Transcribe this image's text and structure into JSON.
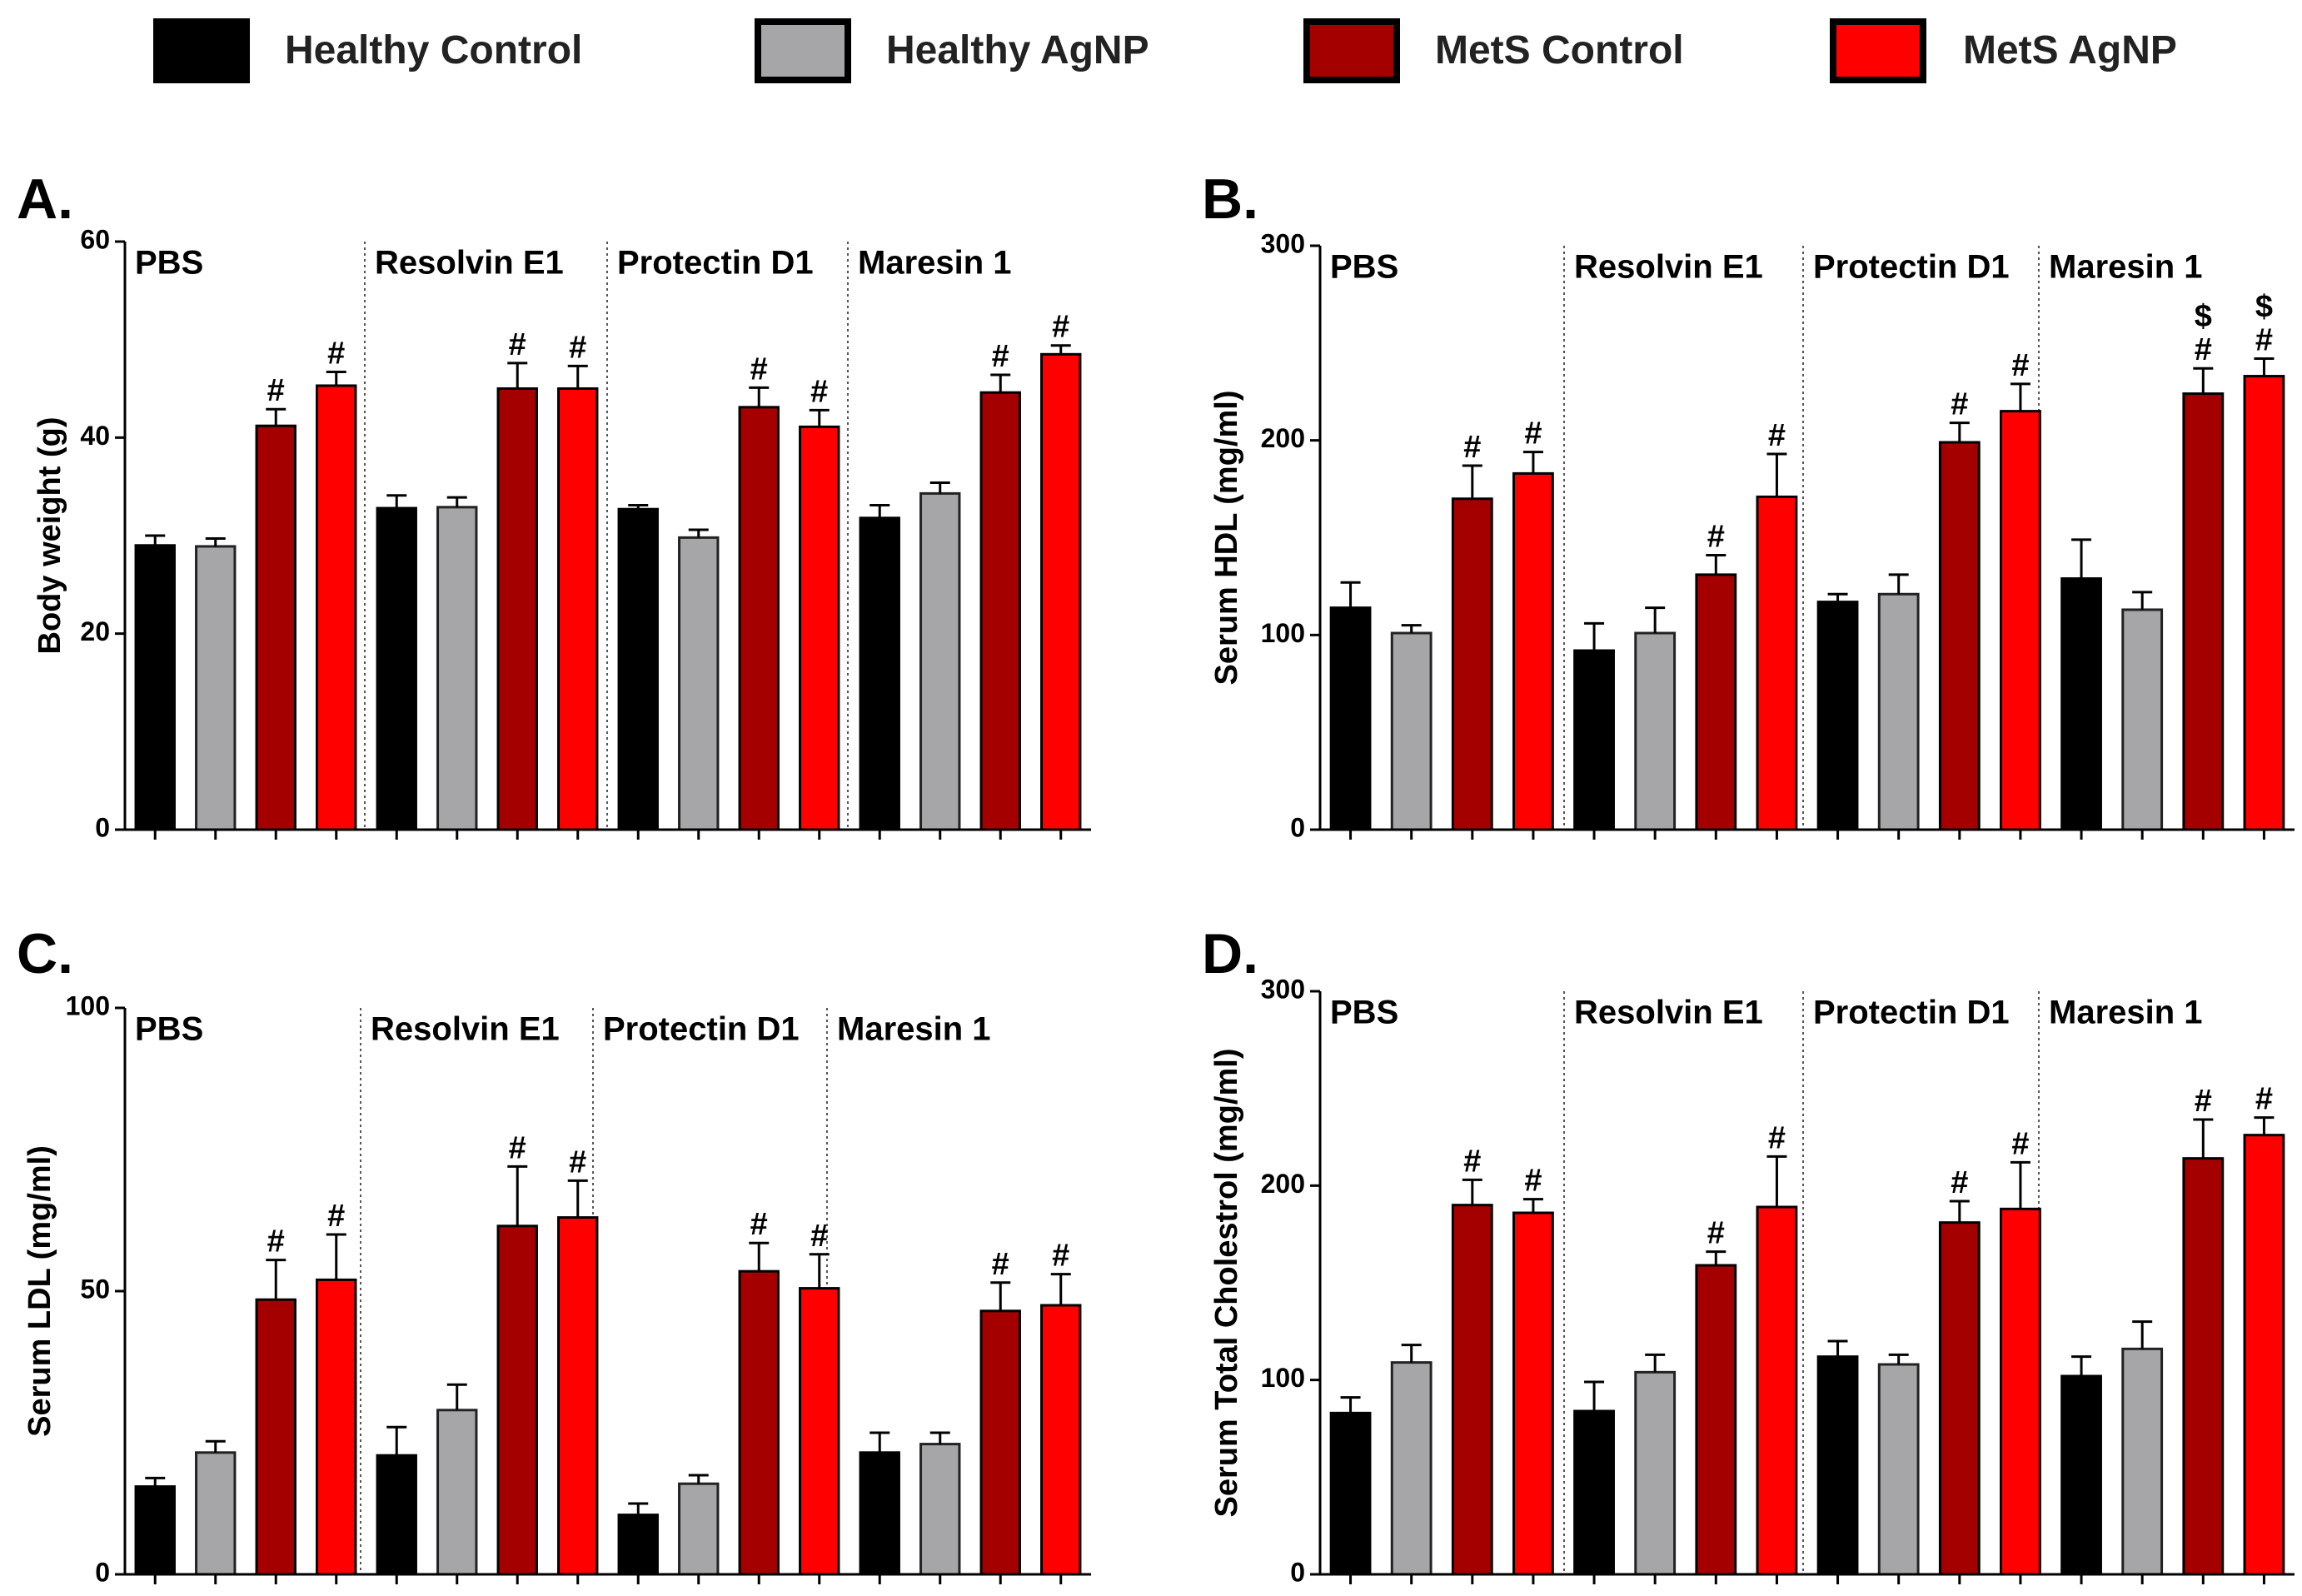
{
  "legend": [
    {
      "label": "Healthy Control",
      "color": "#000000"
    },
    {
      "label": "Healthy AgNP",
      "color": "#a6a6a8"
    },
    {
      "label": "MetS Control",
      "color": "#a50000"
    },
    {
      "label": "MetS AgNP",
      "color": "#ff0000"
    }
  ],
  "chart_data": [
    {
      "type": "bar",
      "panel": "A.",
      "ylabel": "Body weight (g)",
      "ylim": [
        0,
        60
      ],
      "yticks": [
        "0",
        "20",
        "40",
        "60"
      ],
      "groups": [
        "PBS",
        "Resolvin E1",
        "Protectin D1",
        "Maresin 1"
      ],
      "series": [
        {
          "name": "Healthy Control",
          "values": [
            29,
            32.8,
            32.7,
            31.8
          ],
          "errors": [
            1.0,
            1.3,
            0.4,
            1.3
          ]
        },
        {
          "name": "Healthy AgNP",
          "values": [
            28.9,
            32.9,
            29.8,
            34.3
          ],
          "errors": [
            0.8,
            1.0,
            0.8,
            1.1
          ]
        },
        {
          "name": "MetS Control",
          "values": [
            41.2,
            45,
            43.1,
            44.6
          ],
          "errors": [
            1.7,
            2.6,
            2.0,
            1.8
          ]
        },
        {
          "name": "MetS AgNP",
          "values": [
            45.3,
            45,
            41.1,
            48.5
          ],
          "errors": [
            1.4,
            2.3,
            1.7,
            0.9
          ]
        }
      ],
      "annotations": [
        {
          "group": 0,
          "series": 2,
          "text": "#"
        },
        {
          "group": 0,
          "series": 3,
          "text": "#"
        },
        {
          "group": 1,
          "series": 2,
          "text": "#"
        },
        {
          "group": 1,
          "series": 3,
          "text": "#"
        },
        {
          "group": 2,
          "series": 2,
          "text": "#"
        },
        {
          "group": 2,
          "series": 3,
          "text": "#"
        },
        {
          "group": 3,
          "series": 2,
          "text": "#"
        },
        {
          "group": 3,
          "series": 3,
          "text": "#"
        }
      ]
    },
    {
      "type": "bar",
      "panel": "B.",
      "ylabel": "Serum HDL (mg/ml)",
      "ylim": [
        0,
        300
      ],
      "yticks": [
        "0",
        "100",
        "200",
        "300"
      ],
      "groups": [
        "PBS",
        "Resolvin E1",
        "Protectin D1",
        "Maresin 1"
      ],
      "series": [
        {
          "name": "Healthy Control",
          "values": [
            114,
            92,
            117,
            129
          ],
          "errors": [
            13,
            14,
            4,
            20
          ]
        },
        {
          "name": "Healthy AgNP",
          "values": [
            101,
            101,
            121,
            113
          ],
          "errors": [
            4,
            13,
            10,
            9
          ]
        },
        {
          "name": "MetS Control",
          "values": [
            170,
            131,
            199,
            224
          ],
          "errors": [
            17,
            10,
            10,
            13
          ]
        },
        {
          "name": "MetS AgNP",
          "values": [
            183,
            171,
            215,
            233
          ],
          "errors": [
            11,
            22,
            14,
            9
          ]
        }
      ],
      "annotations": [
        {
          "group": 0,
          "series": 2,
          "text": "#"
        },
        {
          "group": 0,
          "series": 3,
          "text": "#"
        },
        {
          "group": 1,
          "series": 2,
          "text": "#"
        },
        {
          "group": 1,
          "series": 3,
          "text": "#"
        },
        {
          "group": 2,
          "series": 2,
          "text": "#"
        },
        {
          "group": 2,
          "series": 3,
          "text": "#"
        },
        {
          "group": 3,
          "series": 2,
          "text": "#"
        },
        {
          "group": 3,
          "series": 3,
          "text": "#"
        },
        {
          "group": 3,
          "series": 2,
          "text": "$",
          "level": 2
        },
        {
          "group": 3,
          "series": 3,
          "text": "$",
          "level": 2
        }
      ]
    },
    {
      "type": "bar",
      "panel": "C.",
      "ylabel": "Serum LDL (mg/ml)",
      "ylim": [
        0,
        100
      ],
      "yticks": [
        "0",
        "50",
        "100"
      ],
      "groups": [
        "PBS",
        "Resolvin E1",
        "Protectin D1",
        "Maresin 1"
      ],
      "series": [
        {
          "name": "Healthy Control",
          "values": [
            15.5,
            21,
            10.5,
            21.5
          ],
          "errors": [
            1.5,
            5,
            2,
            3.5
          ]
        },
        {
          "name": "Healthy AgNP",
          "values": [
            21.5,
            29,
            16,
            23
          ],
          "errors": [
            2,
            4.5,
            1.5,
            2
          ]
        },
        {
          "name": "MetS Control",
          "values": [
            48.5,
            61.5,
            53.5,
            46.5
          ],
          "errors": [
            7,
            10.5,
            5,
            5
          ]
        },
        {
          "name": "MetS AgNP",
          "values": [
            52,
            63,
            50.5,
            47.5
          ],
          "errors": [
            8,
            6.5,
            6,
            5.5
          ]
        }
      ],
      "annotations": [
        {
          "group": 0,
          "series": 2,
          "text": "#"
        },
        {
          "group": 0,
          "series": 3,
          "text": "#"
        },
        {
          "group": 1,
          "series": 2,
          "text": "#"
        },
        {
          "group": 1,
          "series": 3,
          "text": "#"
        },
        {
          "group": 2,
          "series": 2,
          "text": "#"
        },
        {
          "group": 2,
          "series": 3,
          "text": "#"
        },
        {
          "group": 3,
          "series": 2,
          "text": "#"
        },
        {
          "group": 3,
          "series": 3,
          "text": "#"
        }
      ]
    },
    {
      "type": "bar",
      "panel": "D.",
      "ylabel": "Serum Total Cholestrol (mg/ml)",
      "ylim": [
        0,
        300
      ],
      "yticks": [
        "0",
        "100",
        "200",
        "300"
      ],
      "groups": [
        "PBS",
        "Resolvin E1",
        "Protectin D1",
        "Maresin 1"
      ],
      "series": [
        {
          "name": "Healthy Control",
          "values": [
            83,
            84,
            112,
            102
          ],
          "errors": [
            8,
            15,
            8,
            10
          ]
        },
        {
          "name": "Healthy AgNP",
          "values": [
            109,
            104,
            108,
            116
          ],
          "errors": [
            9,
            9,
            5,
            14
          ]
        },
        {
          "name": "MetS Control",
          "values": [
            190,
            159,
            181,
            214
          ],
          "errors": [
            13,
            7,
            11,
            20
          ]
        },
        {
          "name": "MetS AgNP",
          "values": [
            186,
            189,
            188,
            226
          ],
          "errors": [
            7,
            26,
            24,
            9
          ]
        }
      ],
      "annotations": [
        {
          "group": 0,
          "series": 2,
          "text": "#"
        },
        {
          "group": 0,
          "series": 3,
          "text": "#"
        },
        {
          "group": 1,
          "series": 2,
          "text": "#"
        },
        {
          "group": 1,
          "series": 3,
          "text": "#"
        },
        {
          "group": 2,
          "series": 2,
          "text": "#"
        },
        {
          "group": 2,
          "series": 3,
          "text": "#"
        },
        {
          "group": 3,
          "series": 2,
          "text": "#"
        },
        {
          "group": 3,
          "series": 3,
          "text": "#"
        }
      ]
    }
  ]
}
